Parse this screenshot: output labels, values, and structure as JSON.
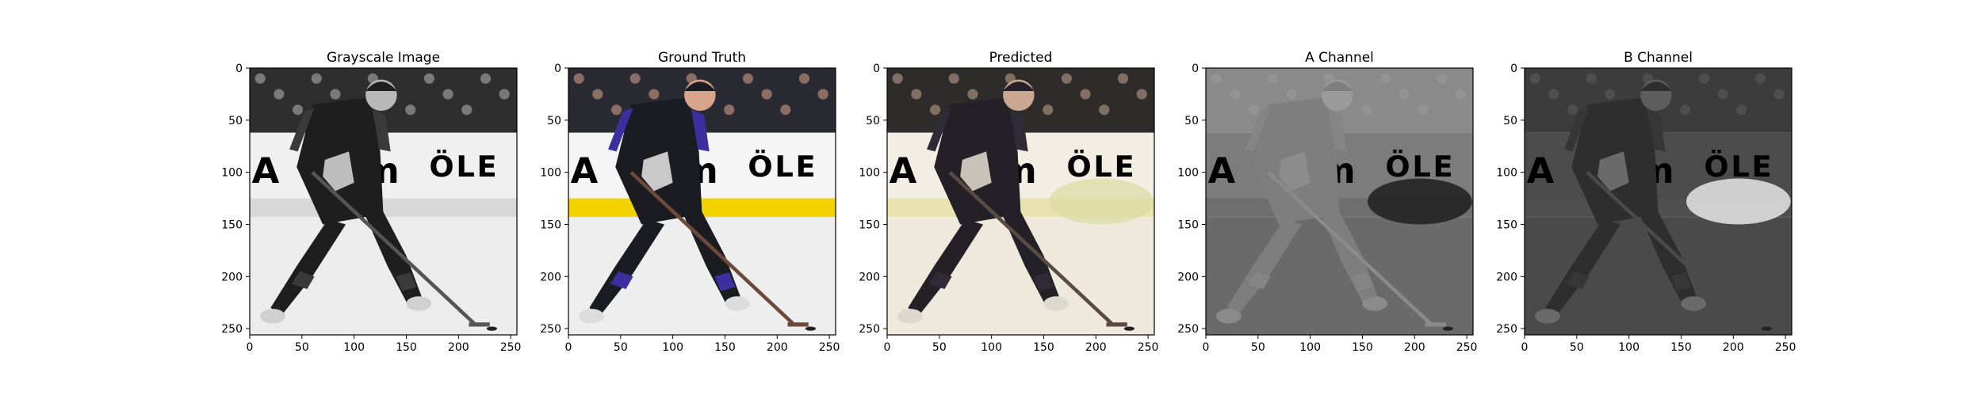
{
  "panels": [
    {
      "title": "Grayscale Image",
      "mode": "gray"
    },
    {
      "title": "Ground Truth",
      "mode": "color"
    },
    {
      "title": "Predicted",
      "mode": "pred"
    },
    {
      "title": "A Channel",
      "mode": "achan"
    },
    {
      "title": "B Channel",
      "mode": "bchan"
    }
  ],
  "axes": {
    "x_ticks": [
      "0",
      "50",
      "100",
      "150",
      "200",
      "250"
    ],
    "y_ticks": [
      "0",
      "50",
      "100",
      "150",
      "200",
      "250"
    ],
    "xlim": [
      0,
      256
    ],
    "ylim": [
      256,
      0
    ]
  },
  "scene": {
    "banner_text": "ÖLE",
    "banner_prefix": "A",
    "banner_mid": "m"
  },
  "colors": {
    "jersey": "#1b1b22",
    "jersey_trim": "#3c2fa0",
    "board_stripe": "#f2d200",
    "ice": "#eeeeee",
    "crowd": "#2a2a2e"
  }
}
